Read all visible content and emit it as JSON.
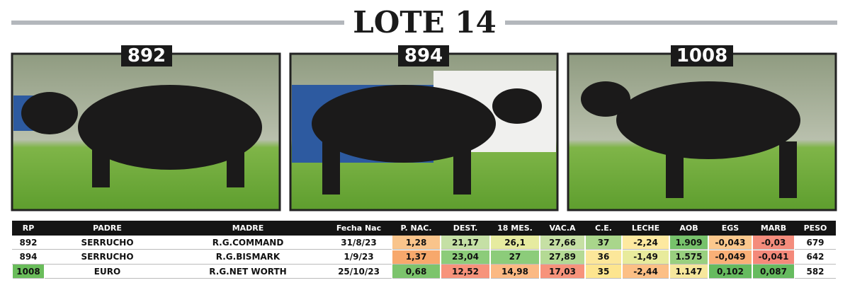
{
  "header": {
    "title": "LOTE 14"
  },
  "photos": [
    {
      "label": "892"
    },
    {
      "label": "894"
    },
    {
      "label": "1008"
    }
  ],
  "table": {
    "columns": [
      "RP",
      "PADRE",
      "MADRE",
      "Fecha Nac",
      "P. NAC.",
      "DEST.",
      "18 MES.",
      "VAC.A",
      "C.E.",
      "LECHE",
      "AOB",
      "EGS",
      "MARB",
      "PESO"
    ],
    "rows": [
      [
        "892",
        "SERRUCHO",
        "R.G.COMMAND",
        "31/8/23",
        "1,28",
        "21,17",
        "26,1",
        "27,66",
        "37",
        "-2,24",
        "1.909",
        "-0,043",
        "-0,03",
        "679"
      ],
      [
        "894",
        "SERRUCHO",
        "R.G.BISMARK",
        "1/9/23",
        "1,37",
        "23,04",
        "27",
        "27,89",
        "36",
        "-1,49",
        "1.575",
        "-0,049",
        "-0,041",
        "642"
      ],
      [
        "1008",
        "EURO",
        "R.G.NET WORTH",
        "25/10/23",
        "0,68",
        "12,52",
        "14,98",
        "17,03",
        "35",
        "-2,44",
        "1.147",
        "0,102",
        "0,087",
        "582"
      ]
    ],
    "cell_colors": [
      [
        null,
        null,
        null,
        null,
        "#f9c48b",
        "#c5e0a5",
        "#e6eba0",
        "#c6e0a4",
        "#a9d68b",
        "#fde9a0",
        "#77c26b",
        "#fbc88d",
        "#f48c7c",
        null
      ],
      [
        null,
        null,
        null,
        null,
        "#f7a86c",
        "#8ccc7a",
        "#8ccc7a",
        "#b4da94",
        "#fce79a",
        "#e8eb9c",
        "#99d07f",
        "#f9b077",
        "#f4897a",
        null
      ],
      [
        "#6abd5b",
        null,
        null,
        null,
        "#7cc46c",
        "#f7937b",
        "#fbb983",
        "#f7937b",
        "#fde58f",
        "#fcbf85",
        "#f6e79c",
        "#66bb5f",
        "#66bb5f",
        null
      ]
    ]
  }
}
